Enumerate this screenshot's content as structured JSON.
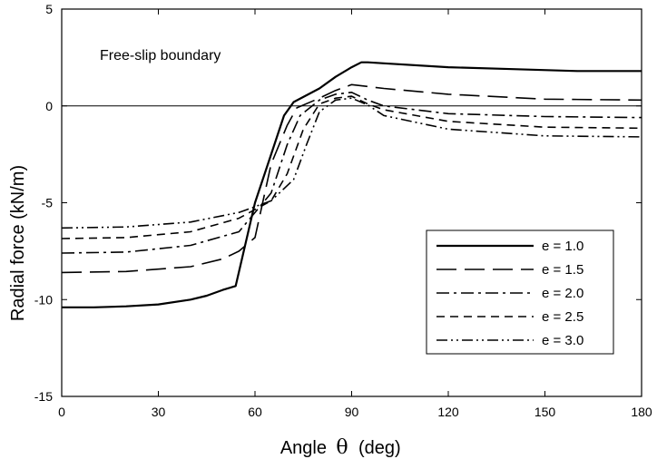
{
  "chart_data": {
    "type": "line",
    "title": "",
    "annotation": "Free-slip boundary",
    "xlabel": "Angle",
    "xlabel_symbol": "θ",
    "xlabel_unit": "(deg)",
    "ylabel": "Radial force (kN/m)",
    "xlim": [
      0,
      180
    ],
    "ylim": [
      -15,
      5
    ],
    "xticks": [
      0,
      30,
      60,
      90,
      120,
      150,
      180
    ],
    "yticks": [
      5,
      0,
      -5,
      -10,
      -15
    ],
    "grid": false,
    "zero_line": true,
    "legend_position": "center-right",
    "series": [
      {
        "name": "e = 1.0",
        "style": "solid",
        "x": [
          0,
          10,
          20,
          30,
          40,
          45,
          50,
          54,
          60,
          65,
          69,
          72,
          80,
          85,
          90,
          93,
          95,
          100,
          120,
          140,
          160,
          180
        ],
        "y": [
          -10.4,
          -10.4,
          -10.35,
          -10.25,
          -10.0,
          -9.8,
          -9.5,
          -9.3,
          -5.0,
          -2.5,
          -0.5,
          0.2,
          0.9,
          1.5,
          2.0,
          2.25,
          2.25,
          2.2,
          2.0,
          1.9,
          1.8,
          1.8
        ]
      },
      {
        "name": "e = 1.5",
        "style": "long-dash",
        "x": [
          0,
          20,
          40,
          50,
          55,
          60,
          65,
          70,
          73,
          80,
          85,
          90,
          100,
          120,
          150,
          180
        ],
        "y": [
          -8.6,
          -8.55,
          -8.3,
          -7.9,
          -7.5,
          -6.8,
          -3.0,
          -1.0,
          -0.1,
          0.4,
          0.8,
          1.1,
          0.9,
          0.6,
          0.35,
          0.3
        ]
      },
      {
        "name": "e = 2.0",
        "style": "dash-dot",
        "x": [
          0,
          20,
          40,
          55,
          65,
          70,
          74,
          80,
          85,
          90,
          95,
          100,
          120,
          150,
          180
        ],
        "y": [
          -7.6,
          -7.55,
          -7.2,
          -6.5,
          -4.5,
          -2.0,
          -0.5,
          0.3,
          0.6,
          0.7,
          0.3,
          0.0,
          -0.4,
          -0.55,
          -0.6
        ]
      },
      {
        "name": "e = 2.5",
        "style": "short-dash",
        "x": [
          0,
          20,
          40,
          55,
          65,
          70,
          75,
          80,
          85,
          90,
          95,
          100,
          120,
          150,
          180
        ],
        "y": [
          -6.85,
          -6.8,
          -6.5,
          -5.8,
          -4.9,
          -3.5,
          -1.2,
          0.1,
          0.4,
          0.5,
          0.1,
          -0.2,
          -0.8,
          -1.1,
          -1.15
        ]
      },
      {
        "name": "e = 3.0",
        "style": "dash-dot-dot",
        "x": [
          0,
          20,
          40,
          55,
          65,
          72,
          76,
          80,
          85,
          90,
          95,
          100,
          120,
          150,
          180
        ],
        "y": [
          -6.3,
          -6.25,
          -6.0,
          -5.5,
          -4.9,
          -3.8,
          -2.0,
          -0.3,
          0.3,
          0.4,
          0.05,
          -0.5,
          -1.2,
          -1.55,
          -1.6
        ]
      }
    ]
  }
}
